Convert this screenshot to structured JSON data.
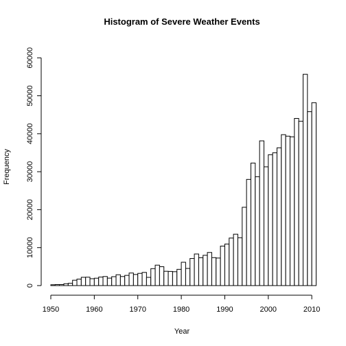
{
  "chart_data": {
    "type": "bar",
    "title": "Histogram of Severe Weather Events",
    "xlabel": "Year",
    "ylabel": "Frequency",
    "x_ticks": [
      1950,
      1960,
      1970,
      1980,
      1990,
      2000,
      2010
    ],
    "y_ticks": [
      0,
      10000,
      20000,
      30000,
      40000,
      50000,
      60000
    ],
    "xlim": [
      1950,
      2011
    ],
    "ylim": [
      0,
      62300
    ],
    "bin_width": 1,
    "bins_start": [
      1950,
      1951,
      1952,
      1953,
      1954,
      1955,
      1956,
      1957,
      1958,
      1959,
      1960,
      1961,
      1962,
      1963,
      1964,
      1965,
      1966,
      1967,
      1968,
      1969,
      1970,
      1971,
      1972,
      1973,
      1974,
      1975,
      1976,
      1977,
      1978,
      1979,
      1980,
      1981,
      1982,
      1983,
      1984,
      1985,
      1986,
      1987,
      1988,
      1989,
      1990,
      1991,
      1992,
      1993,
      1994,
      1995,
      1996,
      1997,
      1998,
      1999,
      2000,
      2001,
      2002,
      2003,
      2004,
      2005,
      2006,
      2007,
      2008,
      2009,
      2010
    ],
    "values": [
      223,
      269,
      272,
      492,
      609,
      1413,
      1703,
      2184,
      2213,
      1813,
      1945,
      2246,
      2389,
      1968,
      2348,
      2855,
      2388,
      2688,
      3312,
      2926,
      3215,
      3471,
      2168,
      4463,
      5386,
      4975,
      3768,
      3728,
      3657,
      4279,
      6146,
      4517,
      7132,
      8322,
      7335,
      7979,
      8726,
      7367,
      7257,
      10410,
      10946,
      12522,
      13534,
      12607,
      20631,
      27970,
      32270,
      28680,
      38128,
      31289,
      34471,
      34975,
      36293,
      39752,
      39363,
      39184,
      44034,
      43289,
      55663,
      45817,
      48161
    ],
    "grid": false,
    "legend": "none"
  }
}
